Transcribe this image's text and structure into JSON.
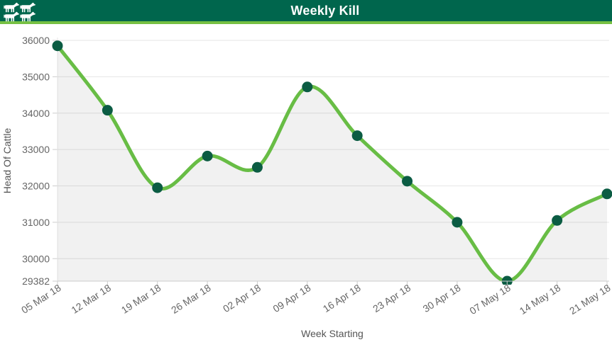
{
  "header": {
    "title": "Weekly Kill",
    "icon": "cattle-icon",
    "bg_color": "#00664d",
    "accent_color": "#76c043"
  },
  "chart_data": {
    "type": "area",
    "title": "Weekly Kill",
    "xlabel": "Week Starting",
    "ylabel": "Head Of Cattle",
    "categories": [
      "05 Mar 18",
      "12 Mar 18",
      "19 Mar 18",
      "26 Mar 18",
      "02 Apr 18",
      "09 Apr 18",
      "16 Apr 18",
      "23 Apr 18",
      "30 Apr 18",
      "07 May 18",
      "14 May 18",
      "21 May 18"
    ],
    "series": [
      {
        "name": "Weekly Kill",
        "values": [
          35850,
          34080,
          31950,
          32820,
          32510,
          34720,
          33380,
          32130,
          31000,
          29382,
          31050,
          31780
        ]
      }
    ],
    "yticks": [
      29382,
      30000,
      31000,
      32000,
      33000,
      34000,
      35000,
      36000
    ],
    "ylim": [
      29382,
      36000
    ],
    "grid": true,
    "legend_position": "none",
    "line_color": "#68bd45",
    "marker_color": "#0b5c43",
    "area_color": "rgba(0,0,0,0.055)",
    "grid_color": "#e6e6e6",
    "axis_line_color": "#cccccc",
    "tick_label_color": "#666666",
    "axis_title_color": "#555555"
  }
}
